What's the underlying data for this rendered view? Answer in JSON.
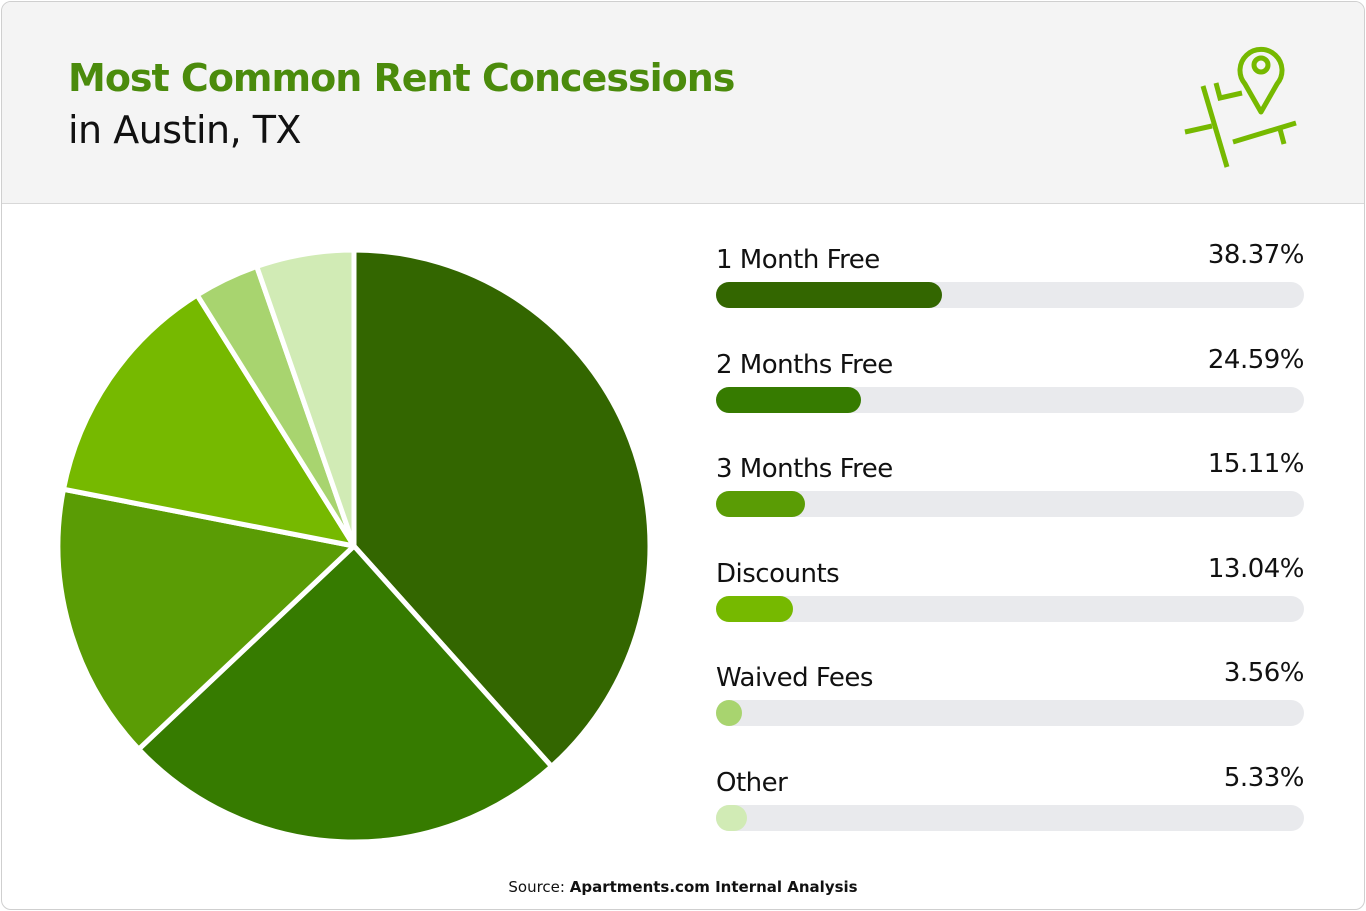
{
  "header": {
    "title": "Most Common Rent Concessions",
    "subtitle": "in Austin, TX",
    "icon": "map-pin-icon",
    "accent": "#76b900"
  },
  "chart_data": {
    "type": "pie",
    "title": "Most Common Rent Concessions in Austin, TX",
    "categories": [
      "1 Month Free",
      "2 Months Free",
      "3 Months Free",
      "Discounts",
      "Waived Fees",
      "Other"
    ],
    "values": [
      38.37,
      24.59,
      15.11,
      13.04,
      3.56,
      5.33
    ],
    "labels": [
      "38.37%",
      "24.59%",
      "15.11%",
      "13.04%",
      "3.56%",
      "5.33%"
    ],
    "colors": [
      "#336600",
      "#367b00",
      "#5a9c05",
      "#76b900",
      "#a8d46f",
      "#d1ebb5"
    ],
    "track_color": "#e9eaed",
    "start": "top",
    "direction": "clockwise"
  },
  "source": {
    "prefix": "Source: ",
    "name": "Apartments.com Internal Analysis"
  }
}
